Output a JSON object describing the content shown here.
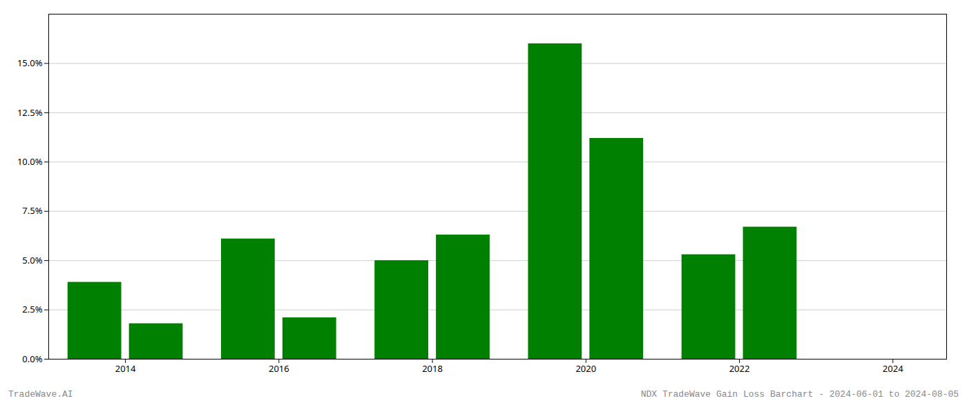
{
  "chart_data": {
    "type": "bar",
    "x": [
      2013.6,
      2014.4,
      2015.6,
      2016.4,
      2017.6,
      2018.4,
      2019.6,
      2020.4,
      2021.6,
      2022.4,
      2023.6
    ],
    "values": [
      0.039,
      0.018,
      0.061,
      0.021,
      0.05,
      0.063,
      0.16,
      0.112,
      0.053,
      0.067,
      0.0
    ],
    "color": "#008000",
    "xlim": [
      2013.0,
      2024.7
    ],
    "xticks": [
      2014,
      2016,
      2018,
      2020,
      2022,
      2024
    ],
    "ylim": [
      0,
      0.175
    ],
    "yticks": [
      {
        "value": 0.0,
        "label": "0.0%"
      },
      {
        "value": 0.025,
        "label": "2.5%"
      },
      {
        "value": 0.05,
        "label": "5.0%"
      },
      {
        "value": 0.075,
        "label": "7.5%"
      },
      {
        "value": 0.1,
        "label": "10.0%"
      },
      {
        "value": 0.125,
        "label": "12.5%"
      },
      {
        "value": 0.15,
        "label": "15.0%"
      }
    ],
    "grid": true,
    "annotations": [
      "TradeWave.AI",
      "NDX TradeWave Gain Loss Barchart - 2024-06-01 to 2024-08-05"
    ]
  }
}
